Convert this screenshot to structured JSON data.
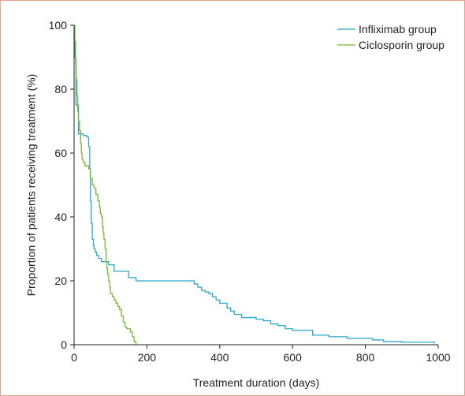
{
  "chart_data": {
    "type": "line",
    "step": true,
    "xlabel": "Treatment duration (days)",
    "ylabel": "Proportion of patients receiving treatment (%)",
    "xlim": [
      0,
      1000
    ],
    "ylim": [
      0,
      100
    ],
    "xticks": [
      0,
      200,
      400,
      600,
      800,
      1000
    ],
    "yticks": [
      0,
      20,
      40,
      60,
      80,
      100
    ],
    "grid": false,
    "legend_position": "top-right",
    "series": [
      {
        "name": "Infliximab group",
        "color": "#2aa7c9",
        "x": [
          0,
          2,
          5,
          8,
          12,
          18,
          25,
          35,
          40,
          43,
          45,
          47,
          50,
          53,
          55,
          58,
          62,
          68,
          75,
          85,
          95,
          110,
          125,
          150,
          170,
          200,
          240,
          280,
          320,
          330,
          340,
          350,
          360,
          370,
          380,
          390,
          400,
          420,
          430,
          440,
          460,
          500,
          520,
          540,
          560,
          580,
          600,
          650,
          655,
          700,
          750,
          820,
          850,
          900,
          990
        ],
        "y": [
          100,
          90,
          75,
          75,
          66,
          66,
          65.5,
          65,
          62,
          55,
          45,
          38,
          33,
          31,
          30,
          29,
          28,
          27,
          26,
          26,
          25,
          23,
          23,
          21,
          20,
          20,
          20,
          20,
          20,
          19,
          18,
          17,
          16.5,
          16,
          15,
          14,
          13,
          11.5,
          10.5,
          9.5,
          8.5,
          8,
          7.5,
          6.5,
          6,
          5,
          4.5,
          4.5,
          3,
          2.5,
          2,
          1.5,
          1,
          0.8,
          0.5
        ]
      },
      {
        "name": "Ciclosporin group",
        "color": "#79b639",
        "x": [
          0,
          2,
          4,
          6,
          8,
          10,
          12,
          15,
          18,
          20,
          22,
          25,
          30,
          35,
          40,
          45,
          50,
          55,
          60,
          65,
          70,
          72,
          75,
          78,
          80,
          82,
          85,
          88,
          90,
          92,
          95,
          98,
          100,
          105,
          110,
          115,
          120,
          125,
          130,
          135,
          140,
          145,
          150,
          155,
          160,
          165,
          170
        ],
        "y": [
          100,
          95,
          88,
          83,
          78,
          73,
          70,
          67,
          63,
          60,
          58,
          57,
          56,
          56,
          55,
          52,
          50,
          49,
          47,
          45,
          43,
          41,
          40,
          37,
          35,
          33,
          30,
          26,
          24,
          22,
          20,
          18,
          16,
          15,
          14,
          13,
          12,
          11,
          9,
          7,
          5.5,
          5,
          5,
          4,
          2.5,
          1,
          0
        ]
      }
    ]
  }
}
